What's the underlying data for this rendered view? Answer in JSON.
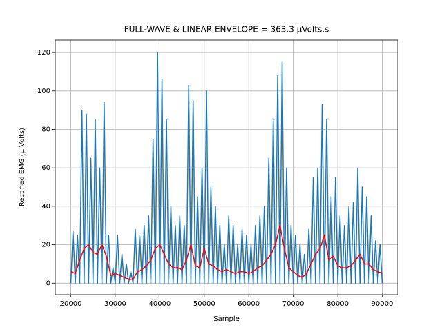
{
  "chart_data": {
    "type": "line",
    "title": "FULL-WAVE & LINEAR ENVELOPE = 363.3 µVolts.s",
    "x_label": "Sample",
    "y_label": "Rectified EMG (µ Volts)",
    "xlim": [
      16500,
      93500
    ],
    "ylim": [
      -6,
      126.5
    ],
    "xticks": [
      20000,
      30000,
      40000,
      50000,
      60000,
      70000,
      80000,
      90000
    ],
    "yticks": [
      0,
      20,
      40,
      60,
      80,
      100,
      120
    ],
    "grid": true,
    "series": [
      {
        "color": "#1f77b4",
        "x": [
          20000,
          20500,
          21000,
          21500,
          22000,
          22500,
          23000,
          23500,
          24000,
          24500,
          25000,
          25500,
          26000,
          26500,
          27000,
          27500,
          28000,
          28500,
          29000,
          29500,
          30000,
          30500,
          31000,
          31500,
          32000,
          32500,
          33000,
          33500,
          34000,
          34500,
          35000,
          35500,
          36000,
          36500,
          37000,
          37500,
          38000,
          38500,
          39000,
          39500,
          40000,
          40500,
          41000,
          41500,
          42000,
          42500,
          43000,
          43500,
          44000,
          44500,
          45000,
          45500,
          46000,
          46500,
          47000,
          47500,
          48000,
          48500,
          49000,
          49500,
          50000,
          50500,
          51000,
          51500,
          52000,
          52500,
          53000,
          53500,
          54000,
          54500,
          55000,
          55500,
          56000,
          56500,
          57000,
          57500,
          58000,
          58500,
          59000,
          59500,
          60000,
          60500,
          61000,
          61500,
          62000,
          62500,
          63000,
          63500,
          64000,
          64500,
          65000,
          65500,
          66000,
          66500,
          67000,
          67500,
          68000,
          68500,
          69000,
          69500,
          70000,
          70500,
          71000,
          71500,
          72000,
          72500,
          73000,
          73500,
          74000,
          74500,
          75000,
          75500,
          76000,
          76500,
          77000,
          77500,
          78000,
          78500,
          79000,
          79500,
          80000,
          80500,
          81000,
          81500,
          82000,
          82500,
          83000,
          83500,
          84000,
          84500,
          85000,
          85500,
          86000,
          86500,
          87000,
          87500,
          88000,
          88500,
          89000,
          89500,
          90000
        ],
        "values": [
          0,
          27,
          0,
          25,
          0,
          90,
          0,
          88,
          0,
          65,
          0,
          85,
          0,
          60,
          0,
          94,
          0,
          25,
          0,
          8,
          0,
          25,
          0,
          15,
          0,
          10,
          0,
          6,
          0,
          28,
          0,
          25,
          0,
          30,
          0,
          35,
          0,
          75,
          0,
          120,
          0,
          106,
          0,
          85,
          0,
          40,
          0,
          30,
          0,
          35,
          0,
          30,
          0,
          103,
          0,
          95,
          0,
          45,
          0,
          60,
          0,
          100,
          0,
          50,
          0,
          40,
          0,
          30,
          0,
          20,
          0,
          35,
          0,
          30,
          0,
          20,
          0,
          28,
          0,
          25,
          0,
          20,
          0,
          30,
          0,
          35,
          0,
          40,
          0,
          65,
          0,
          85,
          0,
          108,
          0,
          115,
          0,
          60,
          0,
          30,
          0,
          25,
          0,
          20,
          0,
          15,
          0,
          28,
          0,
          55,
          0,
          60,
          0,
          93,
          0,
          85,
          0,
          45,
          0,
          55,
          0,
          35,
          0,
          30,
          0,
          40,
          0,
          42,
          0,
          60,
          0,
          50,
          0,
          45,
          0,
          35,
          0,
          22,
          0,
          20,
          0
        ]
      },
      {
        "color": "#ff0000",
        "x": [
          20000,
          21000,
          22000,
          23000,
          24000,
          25000,
          26000,
          27000,
          28000,
          29000,
          30000,
          31000,
          32000,
          33000,
          34000,
          35000,
          36000,
          37000,
          38000,
          39000,
          40000,
          41000,
          42000,
          43000,
          44000,
          45000,
          46000,
          47000,
          48000,
          49000,
          50000,
          51000,
          52000,
          53000,
          54000,
          55000,
          56000,
          57000,
          58000,
          59000,
          60000,
          61000,
          62000,
          63000,
          64000,
          65000,
          66000,
          67000,
          68000,
          69000,
          70000,
          71000,
          72000,
          73000,
          74000,
          75000,
          76000,
          77000,
          78000,
          79000,
          80000,
          81000,
          82000,
          83000,
          84000,
          85000,
          86000,
          87000,
          88000,
          89000,
          90000
        ],
        "values": [
          6,
          5,
          12,
          18,
          20,
          16,
          15,
          20,
          14,
          4,
          5,
          4,
          3,
          2,
          2,
          6,
          7,
          9,
          12,
          18,
          20,
          15,
          10,
          8,
          8,
          7,
          12,
          20,
          9,
          8,
          18,
          10,
          9,
          7,
          6,
          7,
          6,
          5,
          6,
          6,
          5,
          6,
          8,
          9,
          12,
          15,
          20,
          30,
          18,
          8,
          6,
          4,
          3,
          5,
          10,
          15,
          18,
          25,
          12,
          14,
          9,
          8,
          8,
          9,
          12,
          15,
          10,
          10,
          7,
          6,
          5
        ]
      }
    ]
  }
}
